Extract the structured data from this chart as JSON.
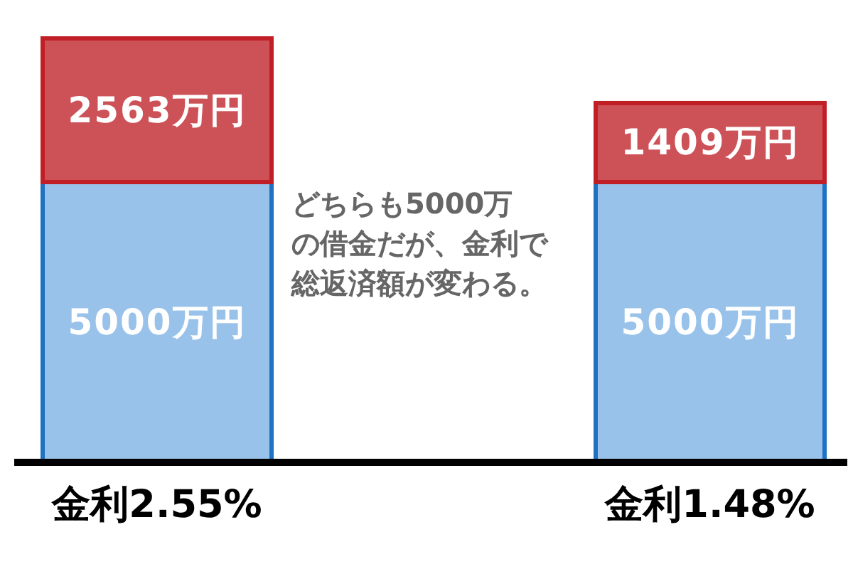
{
  "chart_data": {
    "type": "bar",
    "stacked": true,
    "categories": [
      "金利2.55%",
      "金利1.48%"
    ],
    "series": [
      {
        "color": "#99c2ea",
        "values": [
          5000,
          5000
        ],
        "value_labels": [
          "5000万円",
          "5000万円"
        ]
      },
      {
        "color": "#cd5257",
        "values": [
          2563,
          1409
        ],
        "value_labels": [
          "2563万円",
          "1409万円"
        ]
      }
    ],
    "annotations": [
      "どちらも5000万の借金だが、金利で総返済額が変わる。"
    ]
  }
}
